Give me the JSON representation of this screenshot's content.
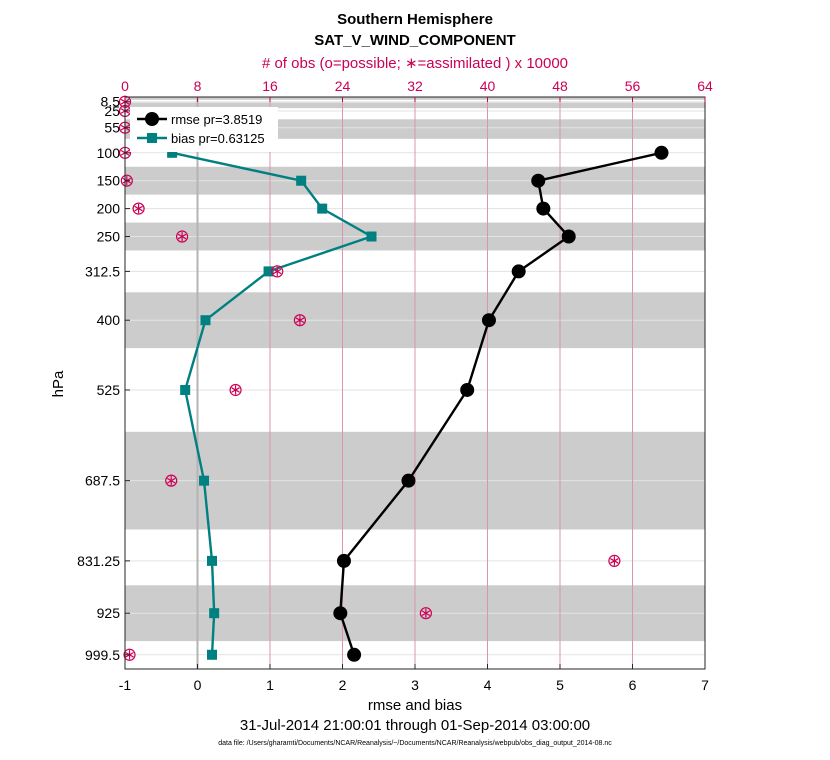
{
  "chart_data": {
    "type": "line",
    "title": "Southern Hemisphere",
    "subtitle": "SAT_V_WIND_COMPONENT",
    "xlabel": "rmse and bias",
    "ylabel": "hPa",
    "top_xlabel": "# of obs (o=possible; ∗=assimilated ) x 10000",
    "xlim": [
      -1,
      7
    ],
    "x_ticks": [
      -1,
      0,
      1,
      2,
      3,
      4,
      5,
      6,
      7
    ],
    "top_xlim": [
      0,
      64
    ],
    "top_ticks": [
      0,
      8,
      16,
      24,
      32,
      40,
      48,
      56,
      64
    ],
    "ylim": [
      1025,
      0
    ],
    "y_tick_labels": [
      "8.5",
      "25",
      "55",
      "100",
      "150",
      "200",
      "250",
      "312.5",
      "400",
      "525",
      "687.5",
      "831.25",
      "925",
      "999.5"
    ],
    "levels": [
      8.5,
      25,
      55,
      100,
      150,
      200,
      250,
      312.5,
      400,
      525,
      687.5,
      831.25,
      925,
      999.5
    ],
    "shaded_bands": [
      [
        0,
        5
      ],
      [
        10,
        20
      ],
      [
        40,
        75
      ],
      [
        125,
        175
      ],
      [
        225,
        275
      ],
      [
        350,
        450
      ],
      [
        600,
        775
      ],
      [
        875,
        975
      ]
    ],
    "series": [
      {
        "name": "rmse",
        "legend": "rmse pr=3.8519",
        "color": "#000000",
        "levels": [
          100,
          150,
          200,
          250,
          312.5,
          400,
          525,
          687.5,
          831.25,
          925,
          999.5
        ],
        "values": [
          6.4,
          4.7,
          4.77,
          5.12,
          4.43,
          4.02,
          3.72,
          2.91,
          2.02,
          1.97,
          2.16
        ]
      },
      {
        "name": "bias",
        "legend": "bias pr=0.63125",
        "color": "#008080",
        "levels": [
          100,
          150,
          200,
          250,
          312.5,
          400,
          525,
          687.5,
          831.25,
          925,
          999.5
        ],
        "values": [
          -0.35,
          1.43,
          1.72,
          2.4,
          0.98,
          0.11,
          -0.17,
          0.09,
          0.2,
          0.23,
          0.2
        ]
      }
    ],
    "obs_counts": {
      "units": "x 10000",
      "levels": [
        8.5,
        25,
        55,
        100,
        150,
        200,
        250,
        312.5,
        400,
        525,
        687.5,
        831.25,
        925,
        999.5
      ],
      "possible": [
        0.0,
        0.0,
        0.0,
        0.0,
        0.2,
        1.5,
        6.3,
        16.8,
        19.3,
        12.2,
        5.1,
        54.0,
        33.2,
        0.5
      ],
      "assimilated": [
        0.0,
        0.0,
        0.0,
        0.0,
        0.2,
        1.5,
        6.3,
        16.8,
        19.3,
        12.2,
        5.1,
        54.0,
        33.2,
        0.5
      ]
    },
    "date_range": "31-Jul-2014 21:00:01 through 01-Sep-2014 03:00:00",
    "data_file": "data file: /Users/gharamti/Documents/NCAR/Reanalysis/~/Documents/NCAR/Reanalysis/webpub/obs_diag_output_2014-08.nc"
  }
}
